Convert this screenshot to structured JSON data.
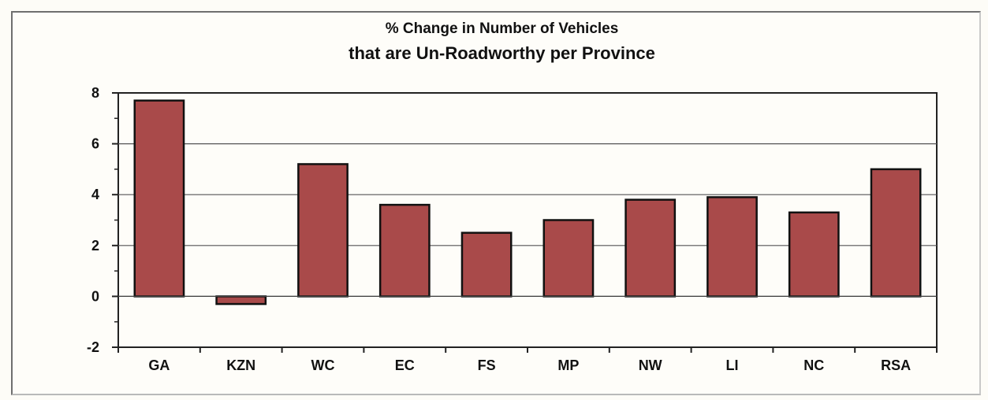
{
  "chart_data": {
    "type": "bar",
    "title_line1": "% Change in Number of Vehicles",
    "title_line2": "that are Un-Roadworthy per Province",
    "categories": [
      "GA",
      "KZN",
      "WC",
      "EC",
      "FS",
      "MP",
      "NW",
      "LI",
      "NC",
      "RSA"
    ],
    "values": [
      7.7,
      -0.3,
      5.2,
      3.6,
      2.5,
      3.0,
      3.8,
      3.9,
      3.3,
      5.0
    ],
    "ylim": [
      -2,
      8
    ],
    "yticks": [
      "-2",
      "0",
      "2",
      "4",
      "6",
      "8"
    ],
    "grid": true,
    "legend": "none",
    "bar_color": "#a94a4a",
    "bar_border_color": "#111111"
  }
}
